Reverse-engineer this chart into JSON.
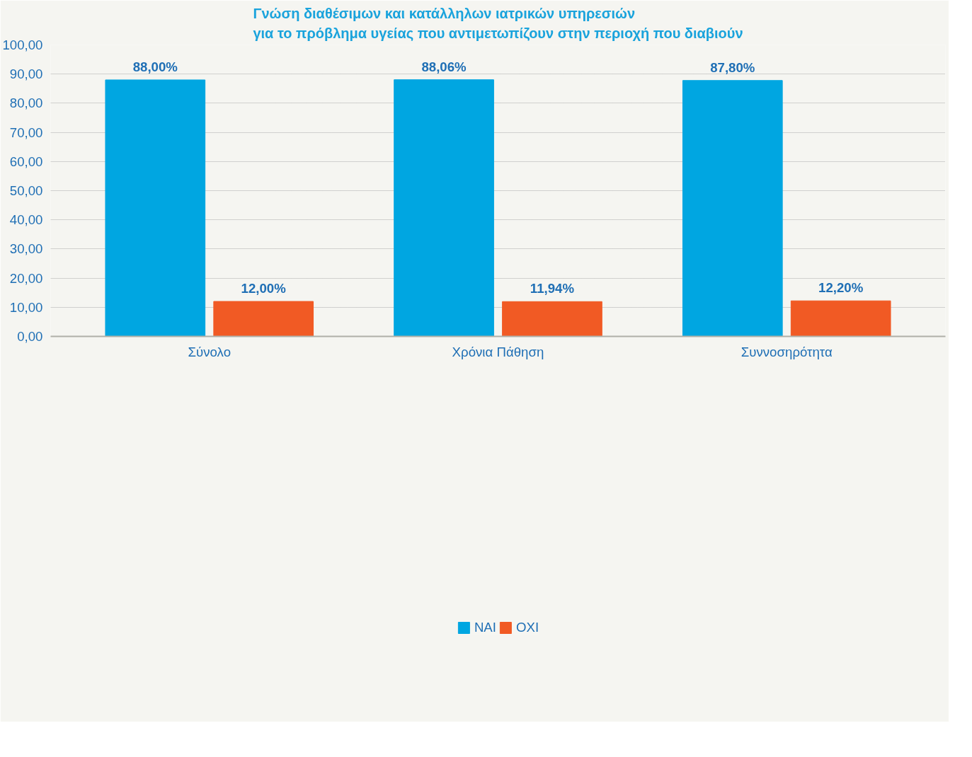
{
  "chart_data": {
    "type": "bar",
    "title": "Γνώση διαθέσιμων και κατάλληλων ιατρικών υπηρεσιών\nγια το πρόβλημα υγείας που αντιμετωπίζουν στην περιοχή που διαβιούν",
    "categories": [
      "Σύνολο",
      "Χρόνια Πάθηση",
      "Συννοσηρότητα"
    ],
    "series": [
      {
        "name": "ΝΑΙ",
        "color": "#00a6e1",
        "values": [
          88.0,
          88.06,
          87.8
        ],
        "value_labels": [
          "88,00%",
          "88,06%",
          "87,80%"
        ]
      },
      {
        "name": "ΟΧΙ",
        "color": "#f15a24",
        "values": [
          12.0,
          11.94,
          12.2
        ],
        "value_labels": [
          "12,00%",
          "11,94%",
          "12,20%"
        ]
      }
    ],
    "ylim": [
      0,
      100
    ],
    "yticks": [
      {
        "value": 0,
        "label": "0,00"
      },
      {
        "value": 10,
        "label": "10,00"
      },
      {
        "value": 20,
        "label": "20,00"
      },
      {
        "value": 30,
        "label": "30,00"
      },
      {
        "value": 40,
        "label": "40,00"
      },
      {
        "value": 50,
        "label": "50,00"
      },
      {
        "value": 60,
        "label": "60,00"
      },
      {
        "value": 70,
        "label": "70,00"
      },
      {
        "value": 80,
        "label": "80,00"
      },
      {
        "value": 90,
        "label": "90,00"
      },
      {
        "value": 100,
        "label": "100,00"
      }
    ],
    "grid": "y",
    "legend": "bottom"
  }
}
